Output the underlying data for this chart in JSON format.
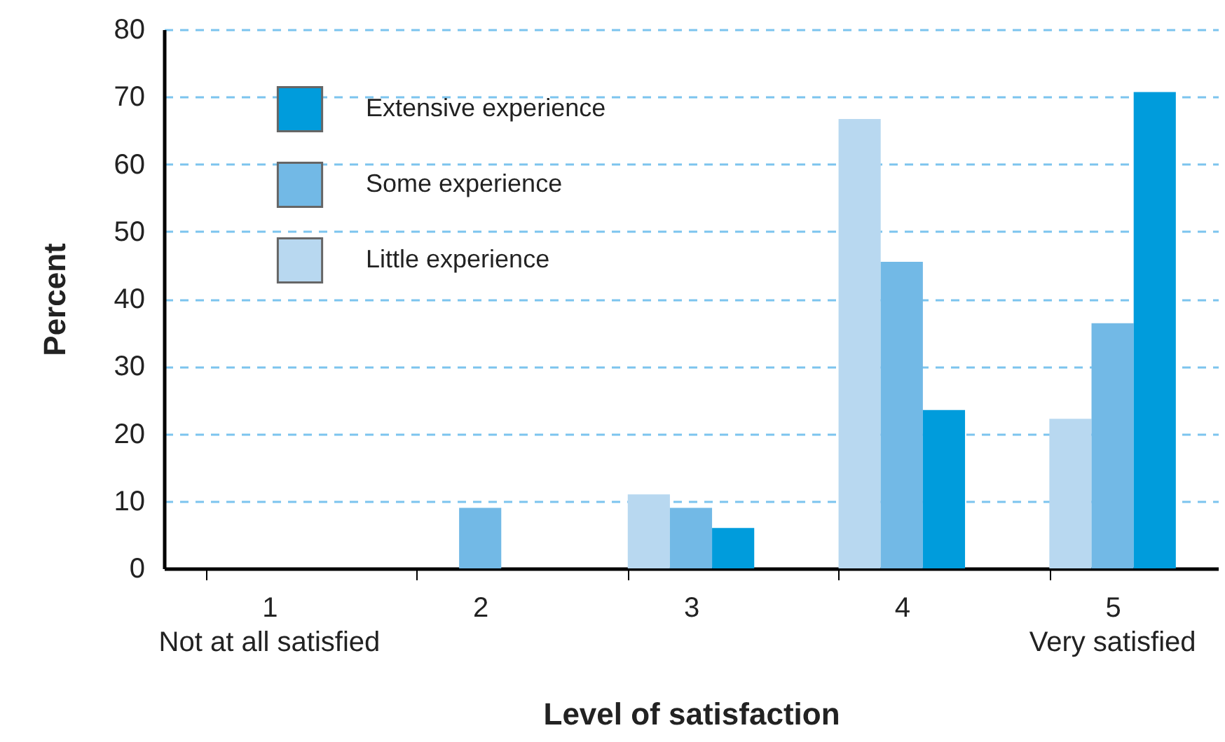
{
  "chart_data": {
    "type": "bar",
    "xlabel": "Level of satisfaction",
    "ylabel": "Percent",
    "categories": [
      "1",
      "2",
      "3",
      "4",
      "5"
    ],
    "series": [
      {
        "name": "Little experience",
        "color": "#b8d8f0",
        "values": [
          0,
          0,
          11,
          66.7,
          22.2
        ]
      },
      {
        "name": "Some experience",
        "color": "#72b9e6",
        "values": [
          0,
          9,
          9,
          45.5,
          36.4
        ]
      },
      {
        "name": "Extensive experience",
        "color": "#009cdc",
        "values": [
          0,
          0,
          6,
          23.5,
          70.7
        ]
      }
    ],
    "ylim": [
      0,
      80
    ],
    "yticks": [
      0,
      10,
      20,
      30,
      40,
      50,
      60,
      70,
      80
    ],
    "grid": "y",
    "legend": "top left",
    "annotations": [
      "Not at all satisfied",
      "Very satisfied"
    ]
  }
}
